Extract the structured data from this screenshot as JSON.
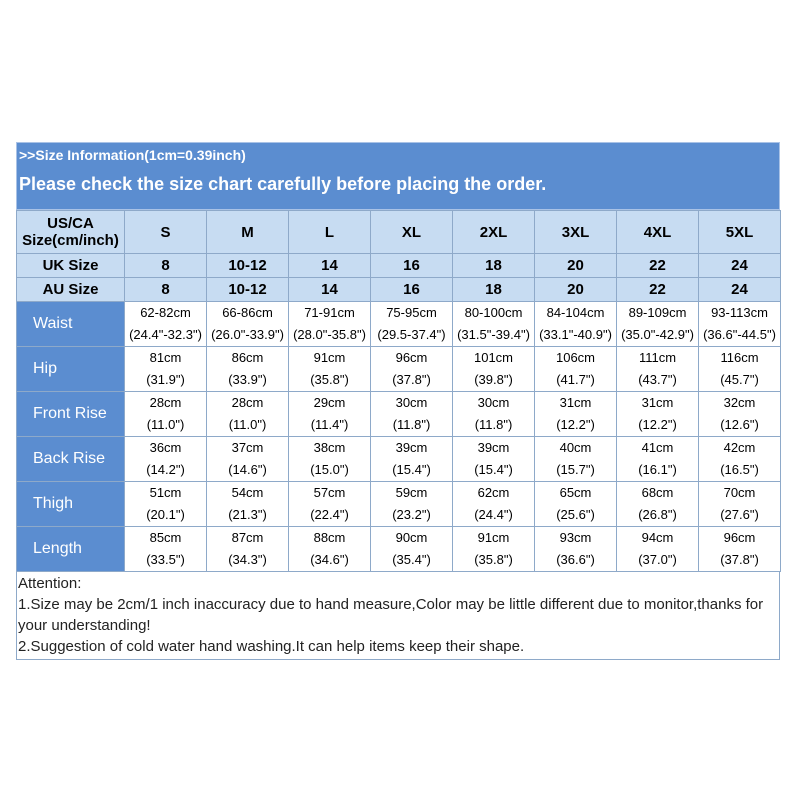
{
  "banner": {
    "info": ">>Size Information(1cm=0.39inch)",
    "notice": "Please check the size chart carefully before placing the order."
  },
  "size_header": {
    "label_line1": "US/CA",
    "label_line2": "Size(cm/inch)",
    "sizes": [
      "S",
      "M",
      "L",
      "XL",
      "2XL",
      "3XL",
      "4XL",
      "5XL"
    ]
  },
  "uk_row": {
    "label": "UK Size",
    "values": [
      "8",
      "10-12",
      "14",
      "16",
      "18",
      "20",
      "22",
      "24"
    ]
  },
  "au_row": {
    "label": "AU Size",
    "values": [
      "8",
      "10-12",
      "14",
      "16",
      "18",
      "20",
      "22",
      "24"
    ]
  },
  "measurements": [
    {
      "label": "Waist",
      "cm": [
        "62-82cm",
        "66-86cm",
        "71-91cm",
        "75-95cm",
        "80-100cm",
        "84-104cm",
        "89-109cm",
        "93-113cm"
      ],
      "inch": [
        "(24.4\"-32.3\")",
        "(26.0\"-33.9\")",
        "(28.0\"-35.8\")",
        "(29.5-37.4\")",
        "(31.5\"-39.4\")",
        "(33.1\"-40.9\")",
        "(35.0\"-42.9\")",
        "(36.6\"-44.5\")"
      ]
    },
    {
      "label": "Hip",
      "cm": [
        "81cm",
        "86cm",
        "91cm",
        "96cm",
        "101cm",
        "106cm",
        "111cm",
        "116cm"
      ],
      "inch": [
        "(31.9\")",
        "(33.9\")",
        "(35.8\")",
        "(37.8\")",
        "(39.8\")",
        "(41.7\")",
        "(43.7\")",
        "(45.7\")"
      ]
    },
    {
      "label": "Front Rise",
      "cm": [
        "28cm",
        "28cm",
        "29cm",
        "30cm",
        "30cm",
        "31cm",
        "31cm",
        "32cm"
      ],
      "inch": [
        "(11.0\")",
        "(11.0\")",
        "(11.4\")",
        "(11.8\")",
        "(11.8\")",
        "(12.2\")",
        "(12.2\")",
        "(12.6\")"
      ]
    },
    {
      "label": "Back Rise",
      "cm": [
        "36cm",
        "37cm",
        "38cm",
        "39cm",
        "39cm",
        "40cm",
        "41cm",
        "42cm"
      ],
      "inch": [
        "(14.2\")",
        "(14.6\")",
        "(15.0\")",
        "(15.4\")",
        "(15.4\")",
        "(15.7\")",
        "(16.1\")",
        "(16.5\")"
      ]
    },
    {
      "label": "Thigh",
      "cm": [
        "51cm",
        "54cm",
        "57cm",
        "59cm",
        "62cm",
        "65cm",
        "68cm",
        "70cm"
      ],
      "inch": [
        "(20.1\")",
        "(21.3\")",
        "(22.4\")",
        "(23.2\")",
        "(24.4\")",
        "(25.6\")",
        "(26.8\")",
        "(27.6\")"
      ]
    },
    {
      "label": "Length",
      "cm": [
        "85cm",
        "87cm",
        "88cm",
        "90cm",
        "91cm",
        "93cm",
        "94cm",
        "96cm"
      ],
      "inch": [
        "(33.5\")",
        "(34.3\")",
        "(34.6\")",
        "(35.4\")",
        "(35.8\")",
        "(36.6\")",
        "(37.0\")",
        "(37.8\")"
      ]
    }
  ],
  "attention": {
    "title": "Attention:",
    "note1": "1.Size may be 2cm/1 inch inaccuracy due to hand measure,Color may be little different due to monitor,thanks for your understanding!",
    "note2": "2.Suggestion of cold water hand washing.It can help items keep their shape."
  },
  "colors": {
    "banner": "#5b8dd0",
    "header_cell": "#c7dcf2",
    "label_cell": "#5b8dd0",
    "border": "#8ea9c9"
  }
}
